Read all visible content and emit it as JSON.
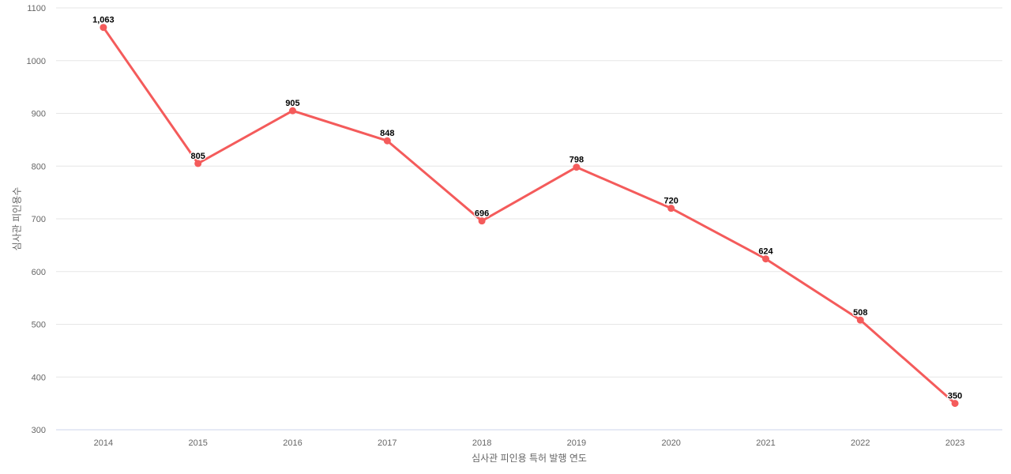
{
  "chart_data": {
    "type": "line",
    "title": "",
    "xlabel": "심사관 피인용 특허 발행 연도",
    "ylabel": "심사관 피인용수",
    "categories": [
      "2014",
      "2015",
      "2016",
      "2017",
      "2018",
      "2019",
      "2020",
      "2021",
      "2022",
      "2023"
    ],
    "values": [
      1063,
      805,
      905,
      848,
      696,
      798,
      720,
      624,
      508,
      350
    ],
    "value_labels": [
      "1,063",
      "805",
      "905",
      "848",
      "696",
      "798",
      "720",
      "624",
      "508",
      "350"
    ],
    "ylim": [
      300,
      1100
    ],
    "yticks": [
      300,
      400,
      500,
      600,
      700,
      800,
      900,
      1000,
      1100
    ],
    "ytick_labels": [
      "300",
      "400",
      "500",
      "600",
      "700",
      "800",
      "900",
      "1000",
      "1100"
    ],
    "grid": "horizontal",
    "legend": "none",
    "colors": {
      "series": "#f45b5b",
      "gridline": "#e6e6e6",
      "axis_line": "#ccd6eb",
      "tick_label": "#666666",
      "axis_title": "#666666",
      "data_label": "#000000",
      "background": "#ffffff"
    }
  }
}
